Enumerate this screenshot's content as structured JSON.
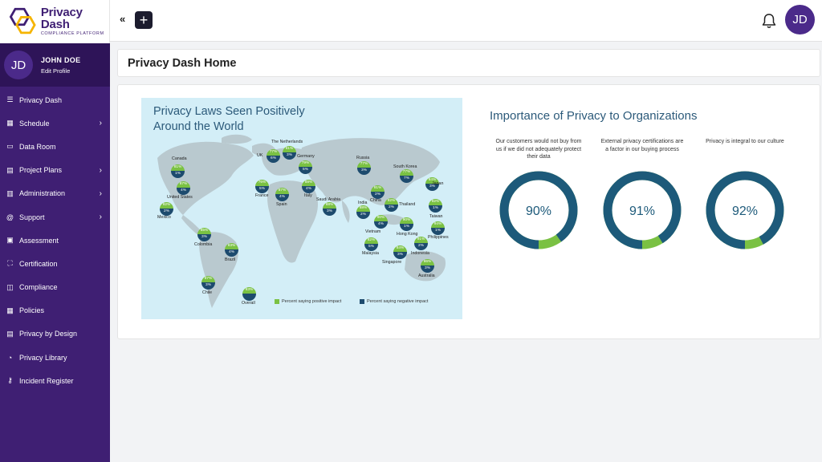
{
  "brand": {
    "name": "Privacy Dash",
    "subtitle": "COMPLIANCE PLATFORM"
  },
  "user": {
    "initials": "JD",
    "name": "JOHN DOE",
    "edit_label": "Edit Profile"
  },
  "sidebar": {
    "items": [
      {
        "label": "Privacy Dash",
        "icon": "menu-icon"
      },
      {
        "label": "Schedule",
        "icon": "calendar-icon",
        "chevron": true
      },
      {
        "label": "Data Room",
        "icon": "folder-icon"
      },
      {
        "label": "Project Plans",
        "icon": "project-icon",
        "chevron": true
      },
      {
        "label": "Administration",
        "icon": "book-icon",
        "chevron": true
      },
      {
        "label": "Support",
        "icon": "at-icon",
        "chevron": true
      },
      {
        "label": "Assessment",
        "icon": "assessment-icon"
      },
      {
        "label": "Certification",
        "icon": "certification-icon"
      },
      {
        "label": "Compliance",
        "icon": "book-open-icon"
      },
      {
        "label": "Policies",
        "icon": "table-icon"
      },
      {
        "label": "Privacy by Design",
        "icon": "design-icon"
      },
      {
        "label": "Privacy Library",
        "icon": "chart-pie-icon"
      },
      {
        "label": "Incident Register",
        "icon": "key-icon"
      }
    ]
  },
  "topbar": {
    "collapse_icon": "«",
    "add_icon": "+",
    "avatar_initials": "JD"
  },
  "page": {
    "title": "Privacy Dash Home"
  },
  "map": {
    "title_line1": "Privacy Laws Seen Positively",
    "title_line2": "Around the World",
    "legend_positive": "Percent saying positive impact",
    "legend_negative": "Percent saying negative impact",
    "colors": {
      "positive": "#7ac143",
      "negative": "#1d4b6e",
      "water": "#d3eef7",
      "land": "#b9c9cf"
    },
    "countries": [
      {
        "name": "Canada",
        "pos": "81%",
        "neg": "1%"
      },
      {
        "name": "United States",
        "pos": "87%",
        "neg": "4%"
      },
      {
        "name": "Mexico",
        "pos": "92%",
        "neg": "2%"
      },
      {
        "name": "Colombia",
        "pos": "85%",
        "neg": "3%"
      },
      {
        "name": "Brazil",
        "pos": "83%",
        "neg": "4%"
      },
      {
        "name": "Chile",
        "pos": "87%",
        "neg": "3%"
      },
      {
        "name": "Overall",
        "pos": "83%",
        "neg": ""
      },
      {
        "name": "UK",
        "pos": "77%",
        "neg": "6%"
      },
      {
        "name": "The Netherlands",
        "pos": "81%",
        "neg": "3%"
      },
      {
        "name": "Germany",
        "pos": "79%",
        "neg": "5%"
      },
      {
        "name": "France",
        "pos": "76%",
        "neg": "5%"
      },
      {
        "name": "Spain",
        "pos": "87%",
        "neg": "4%"
      },
      {
        "name": "Italy",
        "pos": "88%",
        "neg": "4%"
      },
      {
        "name": "Saudi Arabia",
        "pos": "88%",
        "neg": "3%"
      },
      {
        "name": "Russia",
        "pos": "77%",
        "neg": "3%"
      },
      {
        "name": "South Korea",
        "pos": "77%",
        "neg": "7%"
      },
      {
        "name": "Japan",
        "pos": "84%",
        "neg": "3%"
      },
      {
        "name": "India",
        "pos": "88%",
        "neg": "2%"
      },
      {
        "name": "China",
        "pos": "91%",
        "neg": "2%"
      },
      {
        "name": "Thailand",
        "pos": "92%",
        "neg": "2%"
      },
      {
        "name": "Taiwan",
        "pos": "92%",
        "neg": "1%"
      },
      {
        "name": "Vietnam",
        "pos": "90%",
        "neg": "4%"
      },
      {
        "name": "Hong Kong",
        "pos": "90%",
        "neg": "1%"
      },
      {
        "name": "Philippines",
        "pos": "94%",
        "neg": "1%"
      },
      {
        "name": "Malaysia",
        "pos": "82%",
        "neg": "5%"
      },
      {
        "name": "Singapore",
        "pos": "84%",
        "neg": "3%"
      },
      {
        "name": "Indonesia",
        "pos": "91%",
        "neg": "2%"
      },
      {
        "name": "Australia",
        "pos": "86%",
        "neg": "3%"
      }
    ]
  },
  "importance": {
    "title": "Importance of Privacy to Organizations",
    "colors": {
      "primary": "#1d5a7a",
      "accent": "#7ac143"
    },
    "donuts": [
      {
        "caption": "Our customers would not buy from us if we did not adequately protect their data",
        "value": 90,
        "label": "90%"
      },
      {
        "caption": "External privacy certifications are a factor in our buying process",
        "value": 91,
        "label": "91%"
      },
      {
        "caption": "Privacy is integral to our culture",
        "value": 92,
        "label": "92%"
      }
    ]
  }
}
